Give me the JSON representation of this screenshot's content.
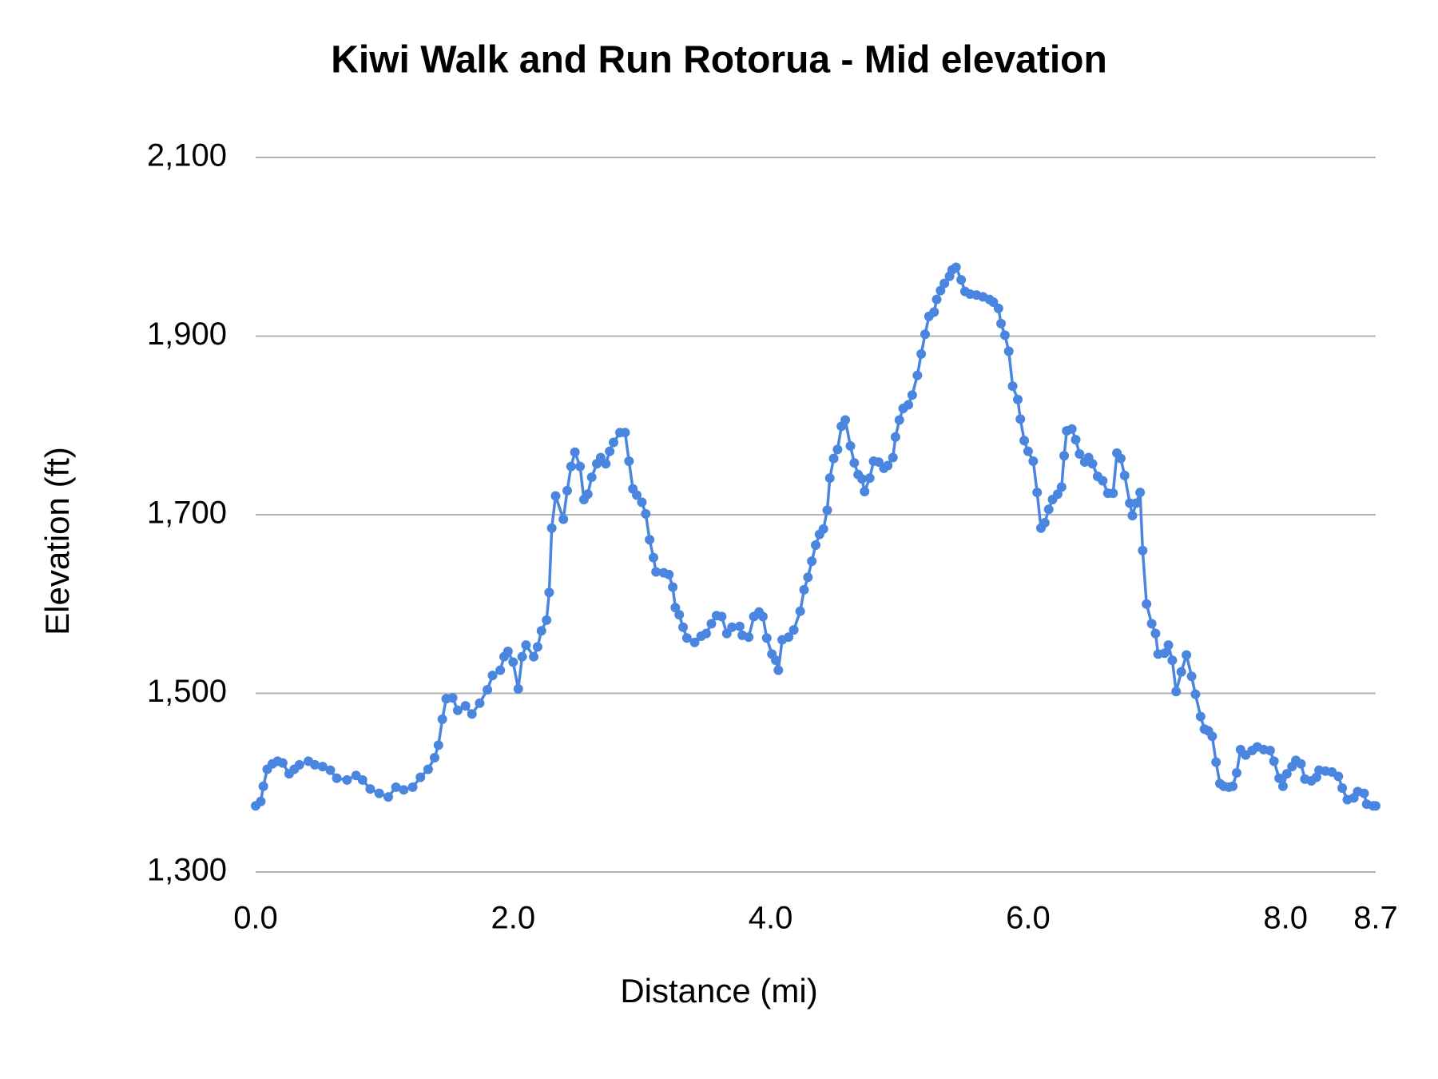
{
  "chart_data": {
    "type": "line",
    "title": "Kiwi Walk and Run Rotorua - Mid elevation",
    "x_label": "Distance (mi)",
    "y_label": "Elevation (ft)",
    "xlim": [
      0,
      8.7
    ],
    "xticks": [
      {
        "value": 0,
        "label": "0.0"
      },
      {
        "value": 2,
        "label": "2.0"
      },
      {
        "value": 4,
        "label": "4.0"
      },
      {
        "value": 6,
        "label": "6.0"
      },
      {
        "value": 8,
        "label": "8.0"
      },
      8.7
    ],
    "ylim": [
      1300,
      2100
    ],
    "yticks": [
      {
        "value": 1300,
        "label": "1,300"
      },
      {
        "value": 1500,
        "label": "1,500"
      },
      {
        "value": 1700,
        "label": "1,700"
      },
      {
        "value": 1900,
        "label": "1,900"
      },
      {
        "value": 2100,
        "label": "2,100"
      }
    ],
    "grid": true,
    "x": [
      0.0,
      0.04,
      0.06,
      0.09,
      0.13,
      0.17,
      0.21,
      0.26,
      0.3,
      0.34,
      0.41,
      0.46,
      0.52,
      0.58,
      0.63,
      0.71,
      0.78,
      0.83,
      0.89,
      0.96,
      1.03,
      1.09,
      1.15,
      1.22,
      1.28,
      1.34,
      1.39,
      1.42,
      1.45,
      1.48,
      1.53,
      1.57,
      1.63,
      1.68,
      1.74,
      1.8,
      1.84,
      1.9,
      1.93,
      1.96,
      2.0,
      2.04,
      2.07,
      2.1,
      2.16,
      2.19,
      2.22,
      2.26,
      2.28,
      2.3,
      2.33,
      2.39,
      2.42,
      2.45,
      2.48,
      2.52,
      2.55,
      2.58,
      2.61,
      2.65,
      2.68,
      2.72,
      2.75,
      2.78,
      2.83,
      2.87,
      2.9,
      2.93,
      2.96,
      3.0,
      3.03,
      3.06,
      3.09,
      3.11,
      3.17,
      3.21,
      3.24,
      3.26,
      3.29,
      3.32,
      3.35,
      3.41,
      3.46,
      3.5,
      3.54,
      3.58,
      3.62,
      3.66,
      3.7,
      3.76,
      3.78,
      3.83,
      3.87,
      3.91,
      3.94,
      3.97,
      4.01,
      4.04,
      4.06,
      4.09,
      4.14,
      4.18,
      4.23,
      4.26,
      4.29,
      4.32,
      4.35,
      4.38,
      4.41,
      4.44,
      4.46,
      4.49,
      4.52,
      4.55,
      4.58,
      4.62,
      4.65,
      4.68,
      4.71,
      4.73,
      4.77,
      4.8,
      4.84,
      4.88,
      4.91,
      4.95,
      4.97,
      5.0,
      5.03,
      5.07,
      5.1,
      5.14,
      5.17,
      5.2,
      5.23,
      5.27,
      5.29,
      5.32,
      5.35,
      5.39,
      5.41,
      5.44,
      5.48,
      5.51,
      5.55,
      5.6,
      5.65,
      5.7,
      5.73,
      5.77,
      5.79,
      5.82,
      5.85,
      5.88,
      5.92,
      5.94,
      5.97,
      6.0,
      6.04,
      6.07,
      6.1,
      6.13,
      6.16,
      6.19,
      6.23,
      6.26,
      6.28,
      6.3,
      6.34,
      6.37,
      6.4,
      6.44,
      6.47,
      6.5,
      6.54,
      6.58,
      6.62,
      6.66,
      6.69,
      6.72,
      6.75,
      6.79,
      6.81,
      6.84,
      6.87,
      6.89,
      6.92,
      6.96,
      6.99,
      7.01,
      7.06,
      7.09,
      7.12,
      7.15,
      7.19,
      7.23,
      7.27,
      7.3,
      7.34,
      7.37,
      7.4,
      7.43,
      7.46,
      7.49,
      7.52,
      7.56,
      7.59,
      7.62,
      7.65,
      7.69,
      7.74,
      7.78,
      7.83,
      7.88,
      7.91,
      7.95,
      7.98,
      8.01,
      8.05,
      8.08,
      8.12,
      8.15,
      8.2,
      8.24,
      8.26,
      8.31,
      8.36,
      8.41,
      8.44,
      8.48,
      8.53,
      8.56,
      8.61,
      8.63,
      8.68,
      8.7
    ],
    "series": [
      {
        "color": "#4a86e0",
        "values": [
          1374,
          1379,
          1396,
          1415,
          1421,
          1424,
          1422,
          1410,
          1415,
          1420,
          1424,
          1420,
          1418,
          1414,
          1405,
          1403,
          1408,
          1403,
          1393,
          1388,
          1384,
          1395,
          1392,
          1395,
          1406,
          1415,
          1428,
          1442,
          1471,
          1494,
          1495,
          1481,
          1486,
          1477,
          1489,
          1504,
          1520,
          1526,
          1541,
          1547,
          1535,
          1505,
          1541,
          1554,
          1541,
          1552,
          1570,
          1582,
          1613,
          1685,
          1721,
          1695,
          1727,
          1754,
          1770,
          1754,
          1717,
          1723,
          1742,
          1757,
          1764,
          1757,
          1771,
          1781,
          1792,
          1792,
          1760,
          1729,
          1722,
          1714,
          1701,
          1672,
          1652,
          1636,
          1635,
          1633,
          1619,
          1596,
          1588,
          1574,
          1562,
          1557,
          1564,
          1567,
          1578,
          1587,
          1586,
          1567,
          1574,
          1575,
          1565,
          1563,
          1586,
          1591,
          1586,
          1562,
          1544,
          1537,
          1526,
          1560,
          1563,
          1571,
          1592,
          1616,
          1630,
          1648,
          1666,
          1678,
          1684,
          1705,
          1741,
          1763,
          1773,
          1799,
          1806,
          1777,
          1758,
          1745,
          1740,
          1726,
          1741,
          1760,
          1759,
          1752,
          1755,
          1764,
          1787,
          1806,
          1819,
          1823,
          1834,
          1856,
          1880,
          1902,
          1922,
          1927,
          1941,
          1951,
          1959,
          1967,
          1974,
          1977,
          1963,
          1950,
          1947,
          1946,
          1944,
          1941,
          1938,
          1931,
          1914,
          1901,
          1883,
          1844,
          1829,
          1807,
          1783,
          1771,
          1760,
          1725,
          1685,
          1691,
          1706,
          1717,
          1723,
          1731,
          1766,
          1794,
          1796,
          1784,
          1768,
          1759,
          1764,
          1757,
          1743,
          1738,
          1724,
          1724,
          1769,
          1763,
          1744,
          1713,
          1699,
          1713,
          1725,
          1660,
          1600,
          1578,
          1567,
          1544,
          1545,
          1554,
          1537,
          1502,
          1524,
          1543,
          1519,
          1499,
          1474,
          1460,
          1458,
          1452,
          1423,
          1399,
          1396,
          1395,
          1396,
          1411,
          1437,
          1431,
          1436,
          1440,
          1437,
          1436,
          1424,
          1405,
          1396,
          1410,
          1418,
          1425,
          1421,
          1404,
          1402,
          1406,
          1414,
          1413,
          1412,
          1407,
          1394,
          1381,
          1383,
          1390,
          1388,
          1376,
          1374,
          1374
        ]
      }
    ]
  }
}
